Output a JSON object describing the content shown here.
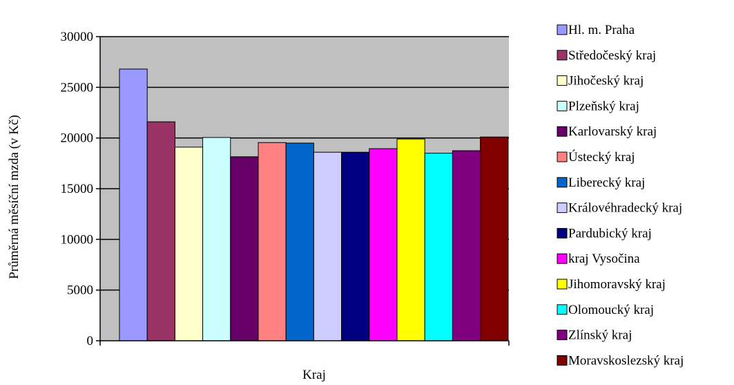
{
  "chart_data": {
    "type": "bar",
    "title": "",
    "xlabel": "Kraj",
    "ylabel": "Průměrná měsíční mzda (v Kč)",
    "ylim": [
      0,
      30000
    ],
    "yticks": [
      0,
      5000,
      10000,
      15000,
      20000,
      25000,
      30000
    ],
    "grid": true,
    "legend_position": "right",
    "plot_background": "#c0c0c0",
    "series": [
      {
        "name": "Hl. m. Praha",
        "value": 26800,
        "color": "#9999ff"
      },
      {
        "name": "Středočeský kraj",
        "value": 21600,
        "color": "#993366"
      },
      {
        "name": "Jihočeský kraj",
        "value": 19100,
        "color": "#ffffcc"
      },
      {
        "name": "Plzeňský kraj",
        "value": 20050,
        "color": "#ccffff"
      },
      {
        "name": "Karlovarský kraj",
        "value": 18150,
        "color": "#660066"
      },
      {
        "name": "Ústecký kraj",
        "value": 19550,
        "color": "#ff8080"
      },
      {
        "name": "Liberecký kraj",
        "value": 19500,
        "color": "#0066cc"
      },
      {
        "name": "Královéhradecký kraj",
        "value": 18600,
        "color": "#ccccff"
      },
      {
        "name": "Pardubický kraj",
        "value": 18600,
        "color": "#000080"
      },
      {
        "name": "kraj Vysočina",
        "value": 18950,
        "color": "#ff00ff"
      },
      {
        "name": "Jihomoravský kraj",
        "value": 19900,
        "color": "#ffff00"
      },
      {
        "name": "Olomoucký kraj",
        "value": 18500,
        "color": "#00ffff"
      },
      {
        "name": "Zlínský kraj",
        "value": 18750,
        "color": "#800080"
      },
      {
        "name": "Moravskoslezský kraj",
        "value": 20100,
        "color": "#800000"
      }
    ]
  }
}
